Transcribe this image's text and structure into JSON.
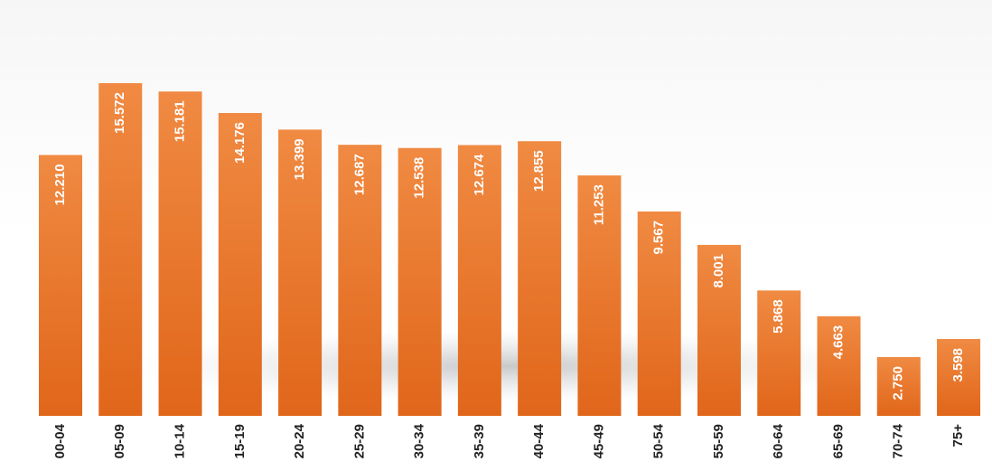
{
  "chart_data": {
    "type": "bar",
    "categories": [
      "00-04",
      "05-09",
      "10-14",
      "15-19",
      "20-24",
      "25-29",
      "30-34",
      "35-39",
      "40-44",
      "45-49",
      "50-54",
      "55-59",
      "60-64",
      "65-69",
      "70-74",
      "75+"
    ],
    "values": [
      12210,
      15572,
      15181,
      14176,
      13399,
      12687,
      12538,
      12674,
      12855,
      11253,
      9567,
      8001,
      5868,
      4663,
      2750,
      3598
    ],
    "value_labels": [
      "12.210",
      "15.572",
      "15.181",
      "14.176",
      "13.399",
      "12.687",
      "12.538",
      "12.674",
      "12.855",
      "11.253",
      "9.567",
      "8.001",
      "5.868",
      "4.663",
      "2.750",
      "3.598"
    ],
    "color": "#ec7a30"
  }
}
